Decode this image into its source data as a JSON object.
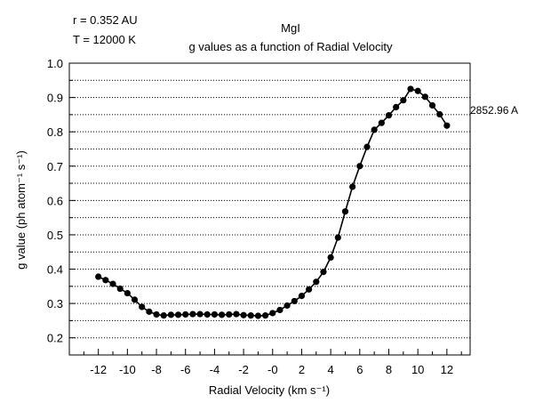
{
  "chart_data": {
    "type": "line",
    "title": "MgI",
    "subtitle": "g values as a function of Radial Velocity",
    "annotations": [
      "r = 0.352 AU",
      "T = 12000 K"
    ],
    "xlabel": "Radial Velocity (km s⁻¹)",
    "ylabel": "g value (ph atom⁻¹ s⁻¹)",
    "xlim": [
      -14,
      13.6
    ],
    "ylim": [
      0.15,
      1.0
    ],
    "xticks": [
      -12,
      -10,
      -8,
      -6,
      -4,
      -2,
      0,
      2,
      4,
      6,
      8,
      10,
      12
    ],
    "xtick_labels": [
      "-12",
      "-10",
      "-8",
      "-6",
      "-4",
      "-2",
      "-0",
      "2",
      "4",
      "6",
      "8",
      "10",
      "12"
    ],
    "yticks": [
      0.2,
      0.3,
      0.4,
      0.5,
      0.6,
      0.7,
      0.8,
      0.9,
      1.0
    ],
    "ytick_labels": [
      "0.2",
      "0.3",
      "0.4",
      "0.5",
      "0.6",
      "0.7",
      "0.8",
      "0.9",
      "1.0"
    ],
    "grid": "horizontal-dotted",
    "series": [
      {
        "name": "2852.96 A",
        "x": [
          -12,
          -11.5,
          -11,
          -10.5,
          -10,
          -9.5,
          -9,
          -8.5,
          -8,
          -7.5,
          -7,
          -6.5,
          -6,
          -5.5,
          -5,
          -4.5,
          -4,
          -3.5,
          -3,
          -2.5,
          -2,
          -1.5,
          -1,
          -0.5,
          0,
          0.5,
          1,
          1.5,
          2,
          2.5,
          3,
          3.5,
          4,
          4.5,
          5,
          5.5,
          6,
          6.5,
          7,
          7.5,
          8,
          8.5,
          9,
          9.5,
          10,
          10.5,
          11,
          11.5,
          12
        ],
        "y": [
          0.378,
          0.368,
          0.357,
          0.343,
          0.33,
          0.311,
          0.29,
          0.276,
          0.268,
          0.265,
          0.267,
          0.267,
          0.268,
          0.269,
          0.269,
          0.268,
          0.268,
          0.267,
          0.268,
          0.269,
          0.266,
          0.265,
          0.264,
          0.265,
          0.272,
          0.281,
          0.294,
          0.307,
          0.322,
          0.341,
          0.363,
          0.392,
          0.434,
          0.492,
          0.568,
          0.64,
          0.7,
          0.756,
          0.806,
          0.826,
          0.848,
          0.872,
          0.892,
          0.925,
          0.919,
          0.902,
          0.877,
          0.851,
          0.818
        ]
      }
    ]
  }
}
